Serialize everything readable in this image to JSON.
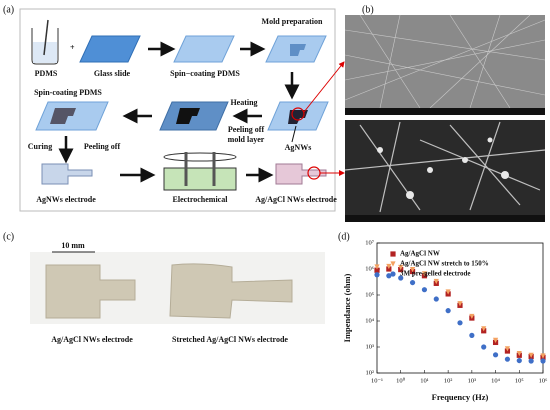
{
  "figure": {
    "panel_labels": [
      "(a)",
      "(b)",
      "(c)",
      "(d)"
    ],
    "a": {
      "mold_preparation": "Mold preparation",
      "pdms": "PDMS",
      "glass_slide": "Glass slide",
      "spin_coating_1": "Spin−coating PDMS",
      "heating": "Heating",
      "peeling_off_mold": [
        "Peeling off",
        "mold layer"
      ],
      "agnws": "AgNWs",
      "spin_coating_2": "Spin-coating PDMS",
      "curing": "Curing",
      "peeling_off": "Peeling off",
      "agnws_electrode": "AgNWs electrode",
      "electrochemical": "Electrochemical",
      "agagcl_electrode": "Ag/AgCl NWs electrode"
    },
    "c": {
      "scale": "10 mm",
      "caption_1": "Ag/AgCl NWs electrode",
      "caption_2": "Stretched Ag/AgCl NWs electrode"
    }
  },
  "chart_data": {
    "type": "scatter",
    "xlabel": "Frequency (Hz)",
    "ylabel": "Impendance (ohm)",
    "xscale": "log",
    "yscale": "log",
    "legend": "upper left",
    "x": [
      0.1,
      0.316,
      1,
      3.16,
      10,
      31.6,
      100,
      316,
      1000,
      3162,
      10000,
      31623,
      100000,
      316228,
      1000000
    ],
    "series": [
      {
        "name": "Ag/AgCl NW",
        "color": "#b22222",
        "marker": "square",
        "values": [
          900000,
          1000000,
          950000,
          800000,
          550000,
          280000,
          110000,
          40000,
          13000,
          4200,
          1500,
          700,
          480,
          430,
          400
        ]
      },
      {
        "name": "Ag/AgCl NW stretch to 150%",
        "color": "#f4a261",
        "marker": "triangle",
        "values": [
          1200000,
          1250000,
          1150000,
          950000,
          650000,
          330000,
          130000,
          46000,
          15000,
          5000,
          1800,
          850,
          560,
          480,
          450
        ]
      },
      {
        "name": "3M pre-gelled electrode",
        "color": "#3f6fc7",
        "marker": "circle",
        "values": [
          600000,
          550000,
          450000,
          300000,
          160000,
          70000,
          25000,
          8500,
          2800,
          1000,
          500,
          340,
          300,
          290,
          290
        ]
      }
    ],
    "xlim": [
      0.1,
      1000000
    ],
    "xticks": [
      {
        "value": 0.1,
        "label": "10⁻¹"
      },
      {
        "value": 1,
        "label": "10⁰"
      },
      {
        "value": 10,
        "label": "10¹"
      },
      {
        "value": 100,
        "label": "10²"
      },
      {
        "value": 1000,
        "label": "10³"
      },
      {
        "value": 10000,
        "label": "10⁴"
      },
      {
        "value": 100000,
        "label": "10⁵"
      },
      {
        "value": 1000000,
        "label": "10⁶"
      }
    ],
    "ylim": [
      100,
      10000000
    ],
    "yticks": [
      {
        "value": 100,
        "label": "10²"
      },
      {
        "value": 1000,
        "label": "10³"
      },
      {
        "value": 10000,
        "label": "10⁴"
      },
      {
        "value": 100000,
        "label": "10⁵"
      },
      {
        "value": 1000000,
        "label": "10⁶"
      },
      {
        "value": 10000000,
        "label": "10⁷"
      }
    ]
  }
}
